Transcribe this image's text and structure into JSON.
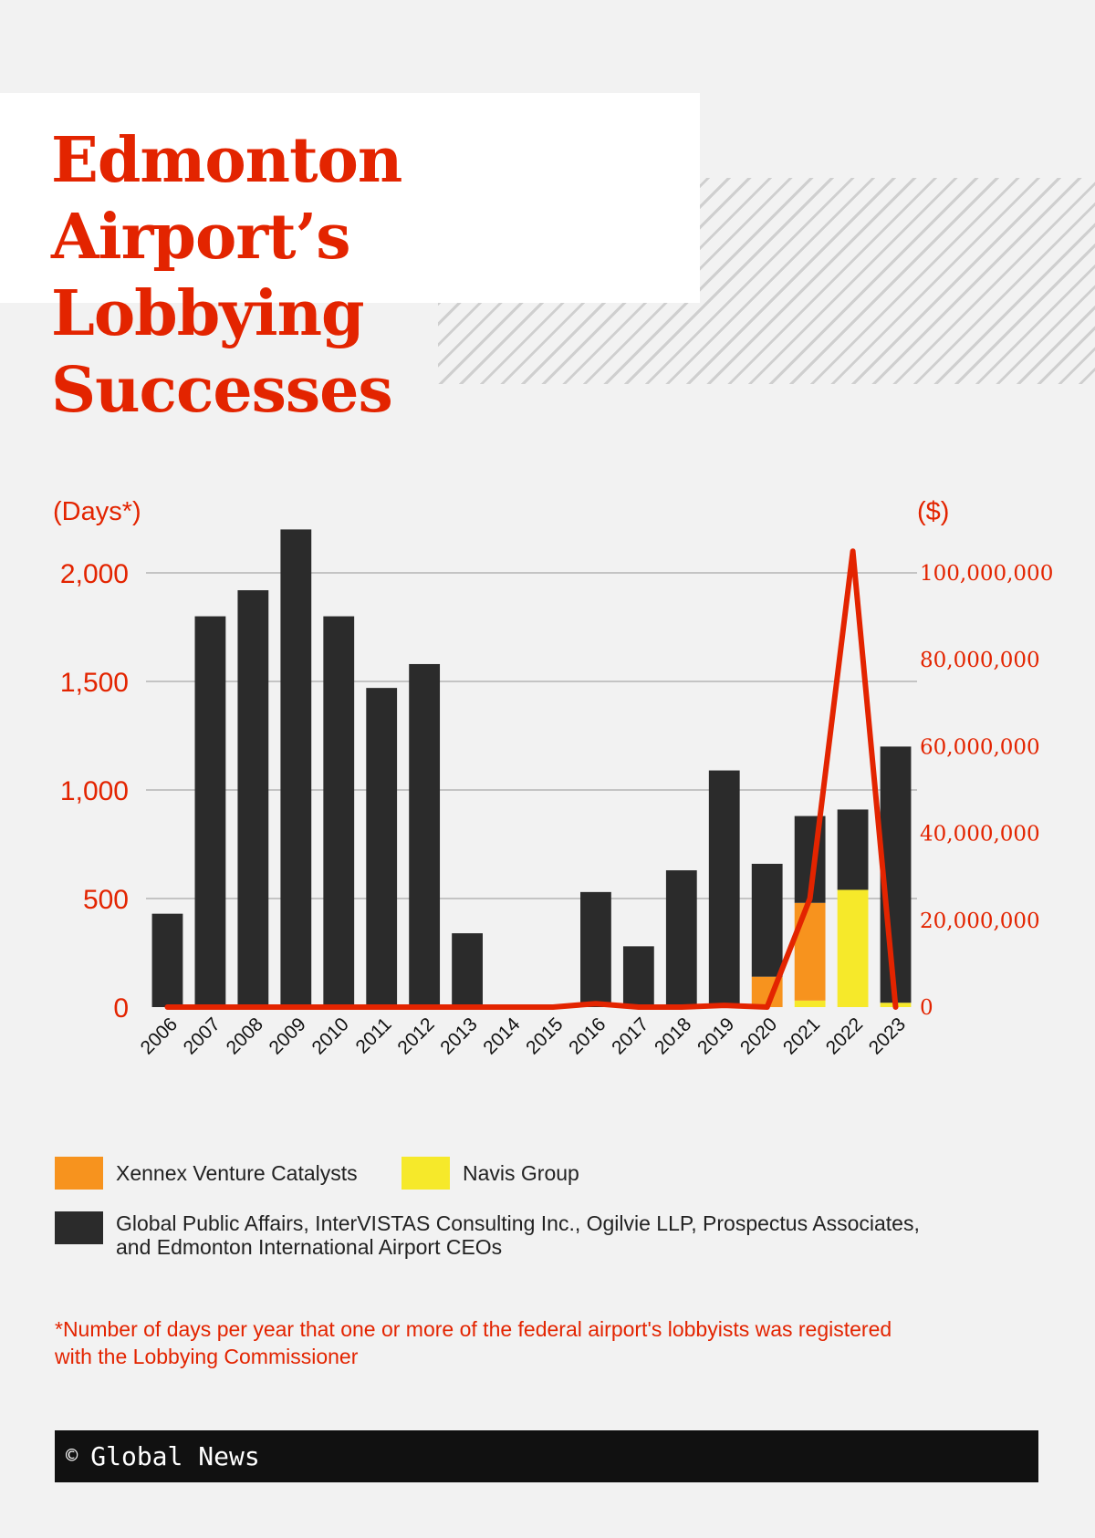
{
  "title": {
    "line1": "Edmonton Airport’s",
    "line2": "Lobbying Successes"
  },
  "chart_data": {
    "type": "bar",
    "stacked": true,
    "categories": [
      "2006",
      "2007",
      "2008",
      "2009",
      "2010",
      "2011",
      "2012",
      "2013",
      "2014",
      "2015",
      "2016",
      "2017",
      "2018",
      "2019",
      "2020",
      "2021",
      "2022",
      "2023"
    ],
    "series": [
      {
        "name": "Navis Group",
        "color": "#f6e92a",
        "values": [
          0,
          0,
          0,
          0,
          0,
          0,
          0,
          0,
          0,
          0,
          0,
          0,
          0,
          0,
          0,
          30,
          540,
          20
        ]
      },
      {
        "name": "Xennex Venture Catalysts",
        "color": "#f7931e",
        "values": [
          0,
          0,
          0,
          0,
          0,
          0,
          0,
          0,
          0,
          0,
          0,
          0,
          0,
          0,
          140,
          450,
          0,
          0
        ]
      },
      {
        "name": "Global Public Affairs, InterVISTAS Consulting Inc., Ogilvie LLP, Prospectus Associates, and Edmonton International Airport CEOs",
        "color": "#2b2b2b",
        "values": [
          430,
          1800,
          1920,
          2200,
          1800,
          1470,
          1580,
          340,
          0,
          0,
          530,
          280,
          630,
          1090,
          520,
          400,
          370,
          1180
        ]
      }
    ],
    "line_series": {
      "color": "#e32400",
      "axis": "right",
      "values": [
        0,
        0,
        0,
        0,
        0,
        0,
        0,
        0,
        0,
        0,
        800000,
        0,
        0,
        400000,
        0,
        25000000,
        105000000,
        0
      ]
    },
    "y_left": {
      "label": "(Days*)",
      "ticks": [
        "0",
        "500",
        "1,000",
        "1,500",
        "2,000"
      ],
      "lim": [
        0,
        2000
      ]
    },
    "y_right": {
      "label": "($)",
      "ticks": [
        "0",
        "20,000,000",
        "40,000,000",
        "60,000,000",
        "80,000,000",
        "100,000,000"
      ],
      "lim": [
        0,
        100000000
      ]
    },
    "grid": true
  },
  "legend": [
    {
      "label": "Xennex Venture Catalysts",
      "color": "#f7931e"
    },
    {
      "label": "Navis Group",
      "color": "#f6e92a"
    },
    {
      "label_line1": "Global Public Affairs, InterVISTAS Consulting Inc., Ogilvie LLP, Prospectus Associates,",
      "label_line2": "and Edmonton International Airport CEOs",
      "color": "#2b2b2b"
    }
  ],
  "footnote": {
    "line1": "*Number of days per year that one or more of the federal airport's lobbyists was registered",
    "line2": "with the Lobbying Commissioner"
  },
  "footer": {
    "copyright_symbol": "©",
    "source": "Global News"
  }
}
